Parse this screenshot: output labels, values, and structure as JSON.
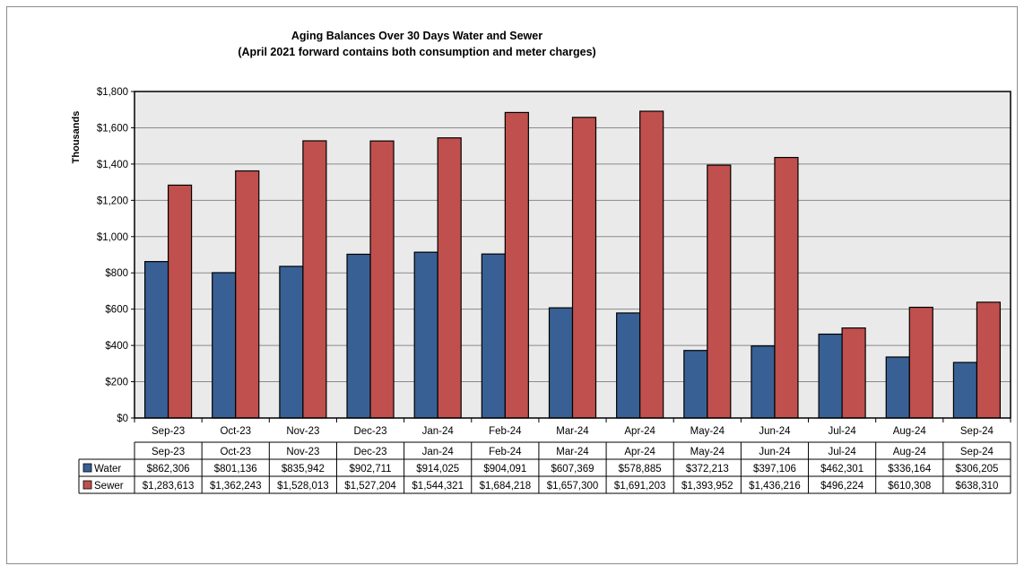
{
  "chart_data": {
    "type": "bar",
    "title": "Aging Balances Over 30 Days Water and Sewer",
    "subtitle": "(April 2021 forward contains both consumption and meter charges)",
    "ylabel": "Thousands",
    "xlabel": "",
    "ylim": [
      0,
      1800
    ],
    "yticks": [
      "$0",
      "$200",
      "$400",
      "$600",
      "$800",
      "$1,000",
      "$1,200",
      "$1,400",
      "$1,600",
      "$1,800"
    ],
    "categories": [
      "Sep-23",
      "Oct-23",
      "Nov-23",
      "Dec-23",
      "Jan-24",
      "Feb-24",
      "Mar-24",
      "Apr-24",
      "May-24",
      "Jun-24",
      "Jul-24",
      "Aug-24",
      "Sep-24"
    ],
    "grid": true,
    "series": [
      {
        "name": "Water",
        "color": "#386094",
        "values": [
          862.306,
          801.136,
          835.942,
          902.711,
          914.025,
          904.091,
          607.369,
          578.885,
          372.213,
          397.106,
          462.301,
          336.164,
          306.205
        ],
        "labels": [
          "$862,306",
          "$801,136",
          "$835,942",
          "$902,711",
          "$914,025",
          "$904,091",
          "$607,369",
          "$578,885",
          "$372,213",
          "$397,106",
          "$462,301",
          "$336,164",
          "$306,205"
        ]
      },
      {
        "name": "Sewer",
        "color": "#c0504d",
        "values": [
          1283.613,
          1362.243,
          1528.013,
          1527.204,
          1544.321,
          1684.218,
          1657.3,
          1691.203,
          1393.952,
          1436.216,
          496.224,
          610.308,
          638.31
        ],
        "labels": [
          "$1,283,613",
          "$1,362,243",
          "$1,528,013",
          "$1,527,204",
          "$1,544,321",
          "$1,684,218",
          "$1,657,300",
          "$1,691,203",
          "$1,393,952",
          "$1,436,216",
          "$496,224",
          "$610,308",
          "$638,310"
        ]
      }
    ]
  }
}
